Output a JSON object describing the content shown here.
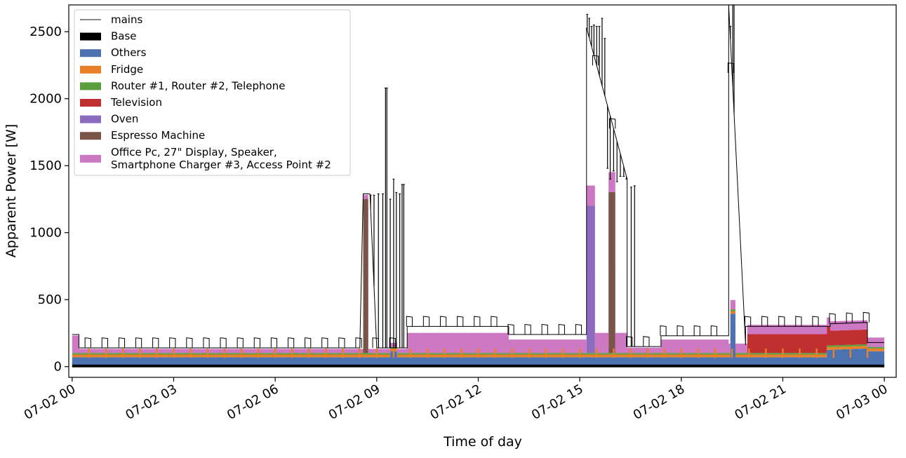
{
  "chart_data": {
    "type": "area",
    "xlabel": "Time of day",
    "ylabel": "Apparent Power [W]",
    "xlim": [
      -0.1,
      24.35
    ],
    "ylim": [
      -80,
      2700
    ],
    "x_ticks": [
      {
        "value": 0,
        "label": "07-02 00"
      },
      {
        "value": 3,
        "label": "07-02 03"
      },
      {
        "value": 6,
        "label": "07-02 06"
      },
      {
        "value": 9,
        "label": "07-02 09"
      },
      {
        "value": 12,
        "label": "07-02 12"
      },
      {
        "value": 15,
        "label": "07-02 15"
      },
      {
        "value": 18,
        "label": "07-02 18"
      },
      {
        "value": 21,
        "label": "07-02 21"
      },
      {
        "value": 24,
        "label": "07-03 00"
      }
    ],
    "y_ticks": [
      0,
      500,
      1000,
      1500,
      2000,
      2500
    ],
    "legend": {
      "placement": "upper-left",
      "entries": [
        {
          "label": "mains",
          "color": "#404040",
          "kind": "line"
        },
        {
          "label": "Base",
          "color": "#000000",
          "kind": "patch"
        },
        {
          "label": "Others",
          "color": "#4c72b0",
          "kind": "patch"
        },
        {
          "label": "Fridge",
          "color": "#e8802a",
          "kind": "patch"
        },
        {
          "label": "Router #1, Router #2, Telephone",
          "color": "#5a9e3e",
          "kind": "patch"
        },
        {
          "label": "Television",
          "color": "#c0302e",
          "kind": "patch"
        },
        {
          "label": "Oven",
          "color": "#8b6cbf",
          "kind": "patch"
        },
        {
          "label": "Espresso Machine",
          "color": "#7b5448",
          "kind": "patch"
        },
        {
          "label": "Office Pc, 27\" Display, Speaker,\nSmartphone Charger #3, Access Point #2",
          "color": "#cc78c3",
          "kind": "patch"
        }
      ]
    },
    "series": [
      {
        "name": "Base",
        "color": "#000000",
        "x": [
          0,
          24
        ],
        "values": [
          15,
          15
        ]
      },
      {
        "name": "Others",
        "color": "#4c72b0",
        "x": [
          0,
          9.4,
          9.4,
          9.6,
          9.6,
          19.45,
          19.45,
          19.6,
          19.6,
          22.3,
          22.3,
          23.5,
          23.5,
          24
        ],
        "values": [
          55,
          55,
          100,
          100,
          55,
          55,
          380,
          380,
          55,
          55,
          110,
          120,
          100,
          100
        ]
      },
      {
        "name": "Fridge",
        "color": "#e8802a",
        "x": [
          0,
          24
        ],
        "values": [
          20,
          20
        ]
      },
      {
        "name": "Router #1, Router #2, Telephone",
        "color": "#5a9e3e",
        "x": [
          0,
          24
        ],
        "values": [
          12,
          12
        ]
      },
      {
        "name": "Television",
        "color": "#c0302e",
        "x": [
          0,
          19.95,
          19.95,
          22.4,
          22.4,
          23.5,
          23.5,
          24
        ],
        "values": [
          0,
          0,
          140,
          140,
          110,
          110,
          0,
          0
        ]
      },
      {
        "name": "Oven",
        "color": "#8b6cbf",
        "x": [
          0,
          15.2,
          15.2,
          15.45,
          15.45,
          24
        ],
        "values": [
          0,
          0,
          1100,
          1100,
          0,
          0
        ]
      },
      {
        "name": "Espresso Machine",
        "color": "#7b5448",
        "x": [
          0,
          8.6,
          8.6,
          8.75,
          8.75,
          15.85,
          15.85,
          16.05,
          16.05,
          24
        ],
        "values": [
          0,
          0,
          1150,
          1150,
          0,
          0,
          1200,
          1200,
          0,
          0
        ]
      },
      {
        "name": "Office Pc, 27\" Display, Speaker, Smartphone Charger #3, Access Point #2",
        "color": "#cc78c3",
        "x": [
          0,
          0.2,
          0.2,
          9.9,
          9.9,
          12.9,
          12.9,
          15.2,
          15.2,
          16.4,
          16.4,
          17.4,
          17.4,
          19.4,
          19.4,
          24
        ],
        "values": [
          130,
          130,
          30,
          30,
          150,
          150,
          100,
          100,
          150,
          150,
          40,
          40,
          100,
          100,
          70,
          70
        ]
      },
      {
        "name": "mains",
        "color": "#000000",
        "kind": "line",
        "x": [
          0,
          0.2,
          0.2,
          8.5,
          8.6,
          8.8,
          9.0,
          9.9,
          9.9,
          12.9,
          12.9,
          15.2,
          15.2,
          16.4,
          16.4,
          17.4,
          17.4,
          19.4,
          19.4,
          19.9,
          19.9,
          22.4,
          22.4,
          23.5,
          23.5,
          24
        ],
        "values": [
          240,
          240,
          140,
          140,
          1290,
          1290,
          140,
          140,
          300,
          300,
          240,
          240,
          2530,
          1400,
          150,
          150,
          230,
          230,
          2700,
          160,
          300,
          300,
          320,
          330,
          180,
          180
        ]
      }
    ],
    "spikes": [
      {
        "x": 8.62,
        "y": 1290
      },
      {
        "x": 8.72,
        "y": 1290
      },
      {
        "x": 8.82,
        "y": 1280
      },
      {
        "x": 8.92,
        "y": 1280
      },
      {
        "x": 9.05,
        "y": 1290
      },
      {
        "x": 9.18,
        "y": 1290
      },
      {
        "x": 9.26,
        "y": 2080
      },
      {
        "x": 9.3,
        "y": 2080
      },
      {
        "x": 9.4,
        "y": 1250
      },
      {
        "x": 9.5,
        "y": 1400
      },
      {
        "x": 9.58,
        "y": 1300
      },
      {
        "x": 9.68,
        "y": 1290
      },
      {
        "x": 9.75,
        "y": 1360
      },
      {
        "x": 9.8,
        "y": 1360
      },
      {
        "x": 15.22,
        "y": 2630
      },
      {
        "x": 15.28,
        "y": 2600
      },
      {
        "x": 15.35,
        "y": 2540
      },
      {
        "x": 15.42,
        "y": 2550
      },
      {
        "x": 15.5,
        "y": 2540
      },
      {
        "x": 15.58,
        "y": 2540
      },
      {
        "x": 15.66,
        "y": 2600
      },
      {
        "x": 15.74,
        "y": 2450
      },
      {
        "x": 15.82,
        "y": 1480
      },
      {
        "x": 15.9,
        "y": 1400
      },
      {
        "x": 16.0,
        "y": 1460
      },
      {
        "x": 16.1,
        "y": 1380
      },
      {
        "x": 16.2,
        "y": 1420
      },
      {
        "x": 16.3,
        "y": 1420
      },
      {
        "x": 16.38,
        "y": 1400
      },
      {
        "x": 16.52,
        "y": 1340
      },
      {
        "x": 16.62,
        "y": 1350
      },
      {
        "x": 19.45,
        "y": 2540
      },
      {
        "x": 19.52,
        "y": 2700
      },
      {
        "x": 19.56,
        "y": 2700
      }
    ]
  }
}
